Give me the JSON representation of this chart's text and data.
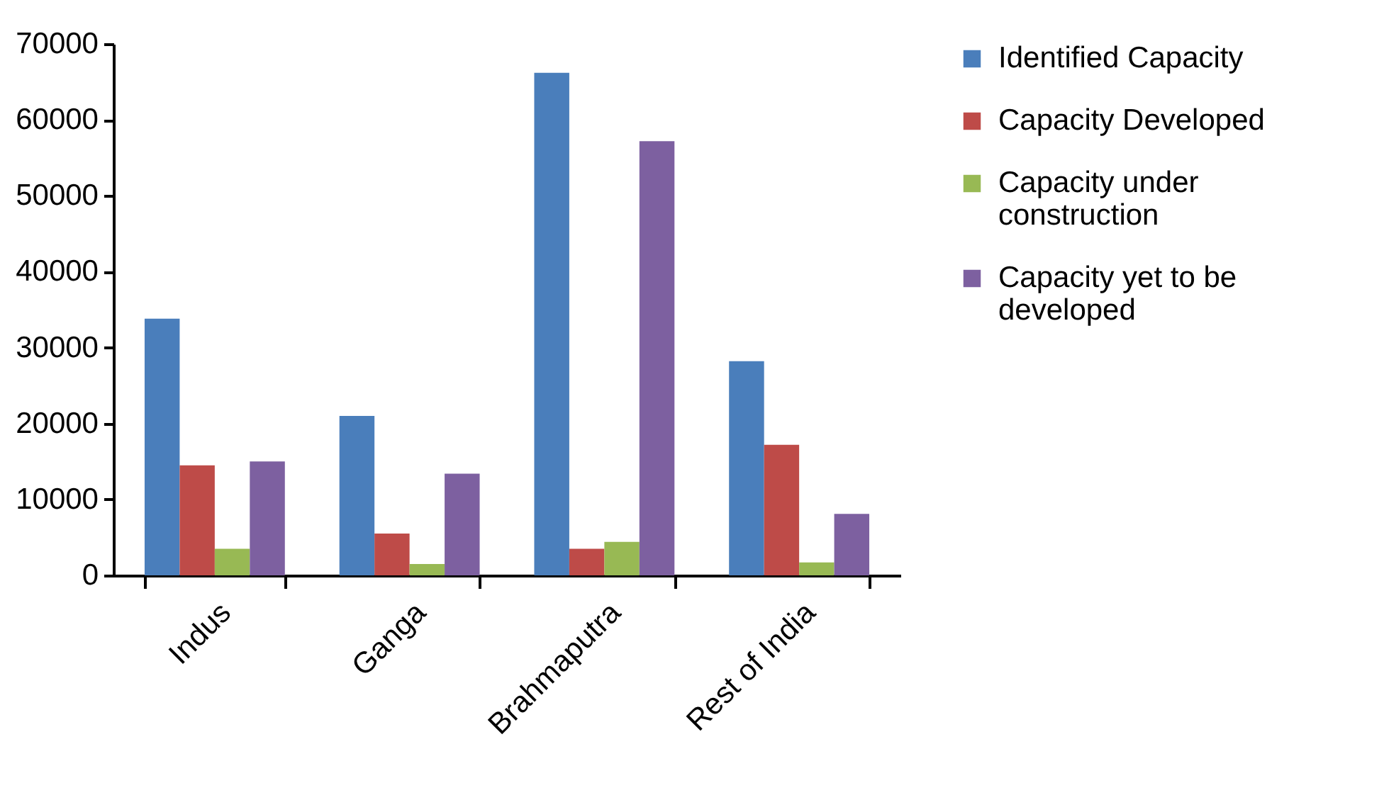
{
  "chart_data": {
    "type": "bar",
    "categories": [
      "Indus",
      "Ganga",
      "Brahmaputra",
      "Rest of India"
    ],
    "series": [
      {
        "name": "Identified Capacity",
        "color": "#4a7ebb",
        "values": [
          33800,
          21000,
          66200,
          28200
        ]
      },
      {
        "name": "Capacity Developed",
        "color": "#be4b48",
        "values": [
          14500,
          5500,
          3500,
          17200
        ]
      },
      {
        "name": "Capacity under construction",
        "color": "#98b954",
        "values": [
          3500,
          1500,
          4400,
          1700
        ]
      },
      {
        "name": "Capacity yet to be developed",
        "color": "#7d60a0",
        "values": [
          15000,
          13400,
          57200,
          8100
        ]
      }
    ],
    "ylim": [
      0,
      70000
    ],
    "yticks": [
      0,
      10000,
      20000,
      30000,
      40000,
      50000,
      60000,
      70000
    ],
    "grid": false,
    "legend": "right"
  }
}
